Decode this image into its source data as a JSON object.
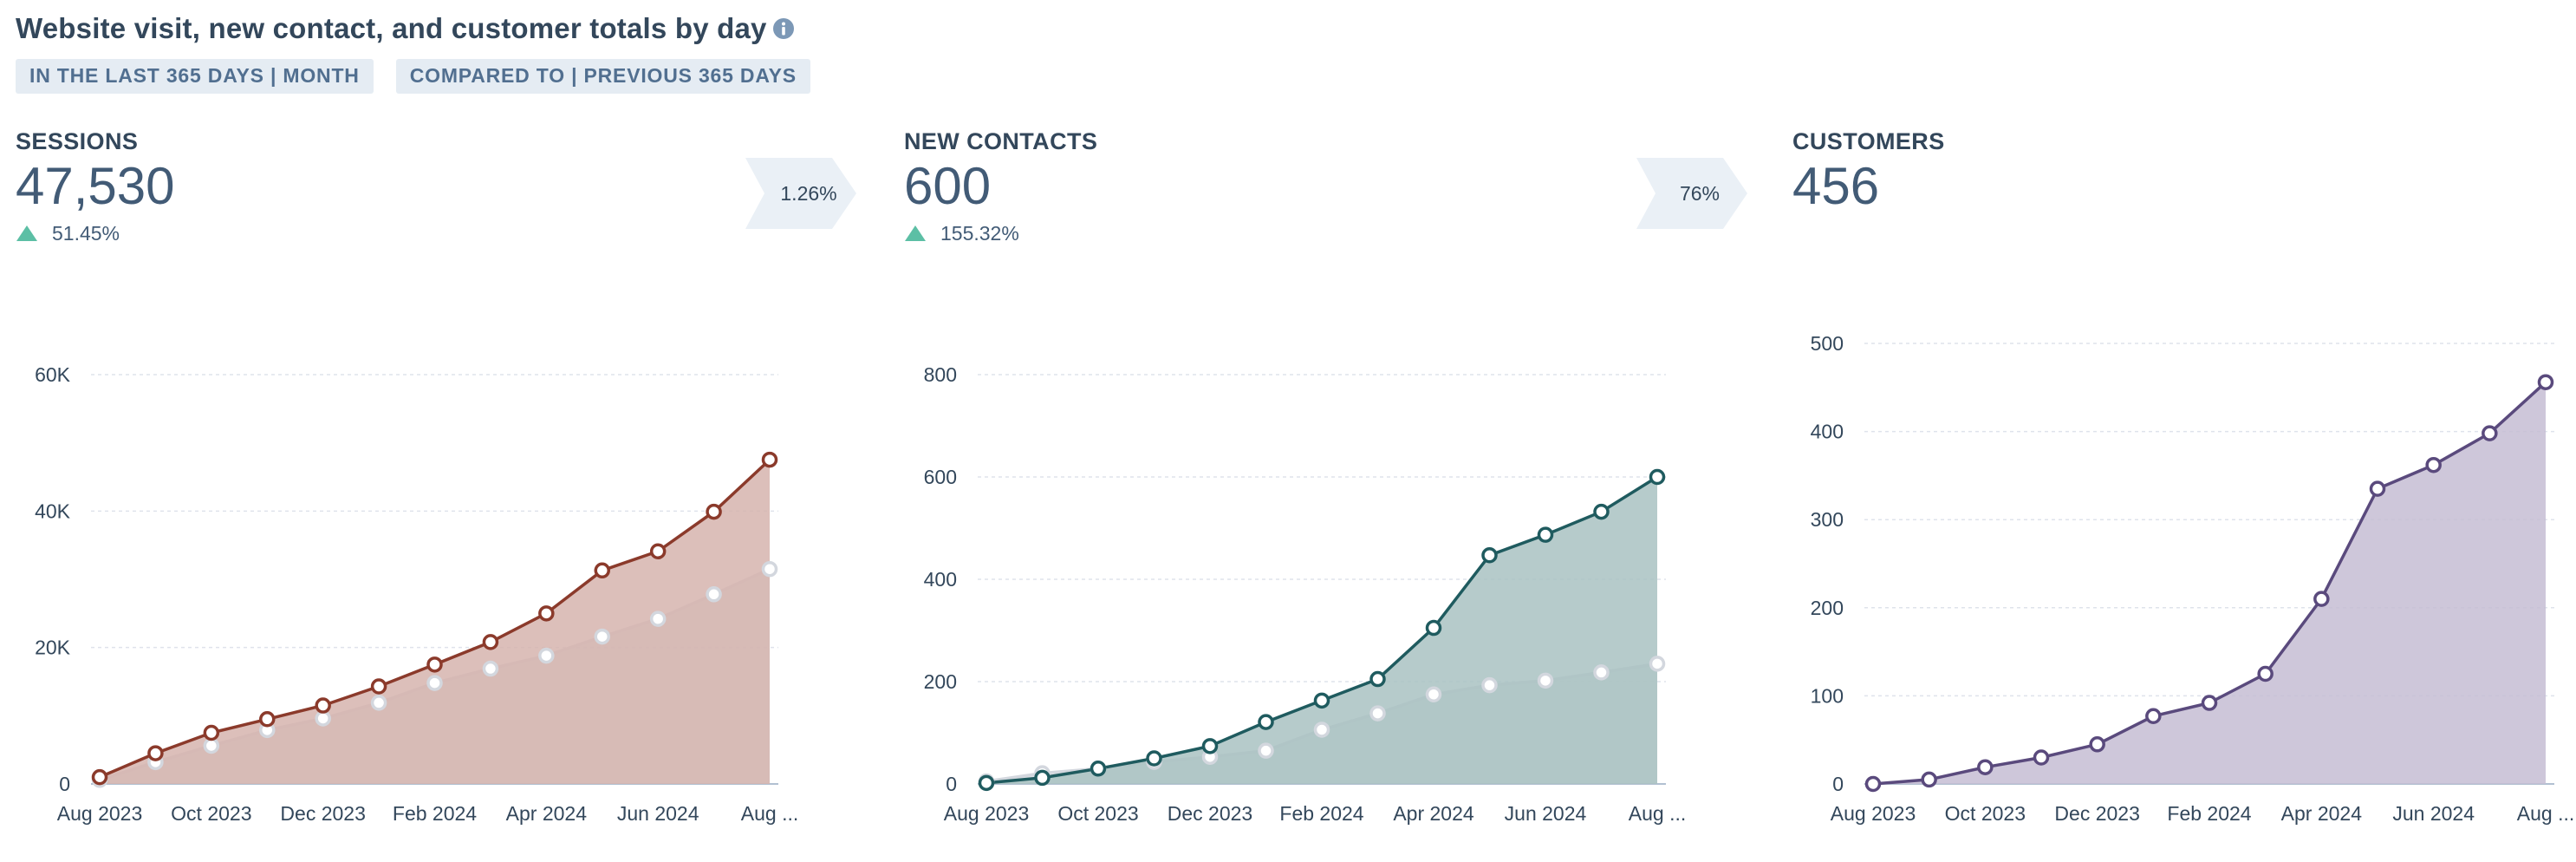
{
  "report": {
    "title": "Website visit, new contact, and customer totals by day",
    "filters": [
      "IN THE LAST 365 DAYS | MONTH",
      "COMPARED TO | PREVIOUS 365 DAYS"
    ]
  },
  "colors": {
    "sessions": "#8b3a2b",
    "sessions_fill": "#d6b4ae",
    "contacts": "#1f5b5f",
    "contacts_fill": "#a9c2c2",
    "customers": "#5a4a7d",
    "customers_fill": "#c6bdd4",
    "previous_line": "#d3d7de",
    "previous_fill": "#c3c9d0",
    "up_arrow": "#5cbfa5"
  },
  "kpis": [
    {
      "label": "SESSIONS",
      "value": "47,530",
      "change": "51.45%",
      "change_direction": "up",
      "conversion": "1.26%"
    },
    {
      "label": "NEW CONTACTS",
      "value": "600",
      "change": "155.32%",
      "change_direction": "up",
      "conversion": "76%"
    },
    {
      "label": "CUSTOMERS",
      "value": "456"
    }
  ],
  "chart_data": [
    {
      "type": "area",
      "x": [
        "Aug 2023",
        "Sep 2023",
        "Oct 2023",
        "Nov 2023",
        "Dec 2023",
        "Jan 2024",
        "Feb 2024",
        "Mar 2024",
        "Apr 2024",
        "May 2024",
        "Jun 2024",
        "Jul 2024",
        "Aug 2024"
      ],
      "x_tick_labels": [
        "Aug 2023",
        "Oct 2023",
        "Dec 2023",
        "Feb 2024",
        "Apr 2024",
        "Jun 2024",
        "Aug ..."
      ],
      "y_ticks": [
        0,
        20000,
        40000,
        60000
      ],
      "y_tick_labels": [
        "0",
        "20K",
        "40K",
        "60K"
      ],
      "ylim": [
        0,
        60000
      ],
      "grid": true,
      "series": [
        {
          "values": [
            1000,
            4500,
            7500,
            9500,
            11500,
            14300,
            17500,
            20800,
            25000,
            31300,
            34100,
            39900,
            47530
          ]
        },
        {
          "values": [
            600,
            3200,
            5600,
            7900,
            9600,
            11900,
            14800,
            16900,
            18800,
            21600,
            24200,
            27800,
            31500
          ]
        }
      ]
    },
    {
      "type": "area",
      "x": [
        "Aug 2023",
        "Sep 2023",
        "Oct 2023",
        "Nov 2023",
        "Dec 2023",
        "Jan 2024",
        "Feb 2024",
        "Mar 2024",
        "Apr 2024",
        "May 2024",
        "Jun 2024",
        "Jul 2024",
        "Aug 2024"
      ],
      "x_tick_labels": [
        "Aug 2023",
        "Oct 2023",
        "Dec 2023",
        "Feb 2024",
        "Apr 2024",
        "Jun 2024",
        "Aug ..."
      ],
      "y_ticks": [
        0,
        200,
        400,
        600,
        800
      ],
      "y_tick_labels": [
        "0",
        "200",
        "400",
        "600",
        "800"
      ],
      "ylim": [
        0,
        800
      ],
      "grid": true,
      "series": [
        {
          "values": [
            2,
            12,
            30,
            50,
            74,
            121,
            163,
            205,
            305,
            447,
            487,
            532,
            600
          ]
        },
        {
          "values": [
            5,
            21,
            30,
            43,
            53,
            65,
            106,
            138,
            175,
            193,
            202,
            218,
            235
          ]
        }
      ]
    },
    {
      "type": "area",
      "x": [
        "Aug 2023",
        "Sep 2023",
        "Oct 2023",
        "Nov 2023",
        "Dec 2023",
        "Jan 2024",
        "Feb 2024",
        "Mar 2024",
        "Apr 2024",
        "May 2024",
        "Jun 2024",
        "Jul 2024",
        "Aug 2024"
      ],
      "x_tick_labels": [
        "Aug 2023",
        "Oct 2023",
        "Dec 2023",
        "Feb 2024",
        "Apr 2024",
        "Jun 2024",
        "Aug ..."
      ],
      "y_ticks": [
        0,
        100,
        200,
        300,
        400,
        500
      ],
      "y_tick_labels": [
        "0",
        "100",
        "200",
        "300",
        "400",
        "500"
      ],
      "ylim": [
        0,
        500
      ],
      "grid": true,
      "series": [
        {
          "values": [
            0,
            5,
            19,
            30,
            45,
            77,
            92,
            125,
            210,
            335,
            362,
            398,
            456
          ]
        }
      ]
    }
  ]
}
